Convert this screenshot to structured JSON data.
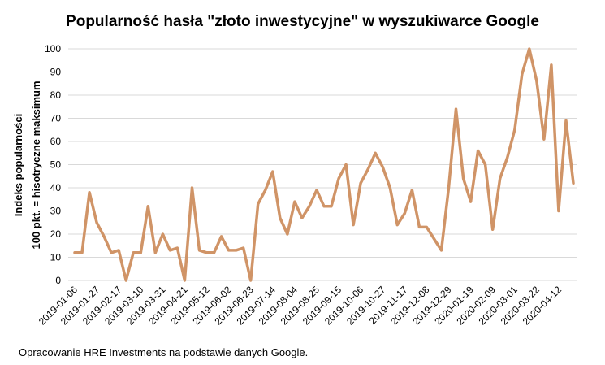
{
  "title": "Popularność hasła \"złoto inwestycyjne\" w wyszukiwarce Google",
  "source": "Opracowanie HRE Investments na podstawie danych Google.",
  "colors": {
    "line": "#d09467",
    "grid": "#d9d9d9"
  },
  "chart_data": {
    "type": "line",
    "ylabel_lines": [
      "Indeks popularności",
      "100 pkt. = hisotryczne maksimum"
    ],
    "ylim": [
      0,
      100
    ],
    "yticks": [
      0,
      10,
      20,
      30,
      40,
      50,
      60,
      70,
      80,
      90,
      100
    ],
    "grid": true,
    "xtick_labels": [
      "2019-01-06",
      "2019-01-27",
      "2019-02-17",
      "2019-03-10",
      "2019-03-31",
      "2019-04-21",
      "2019-05-12",
      "2019-06-02",
      "2019-06-23",
      "2019-07-14",
      "2019-08-04",
      "2019-08-25",
      "2019-09-15",
      "2019-10-06",
      "2019-10-27",
      "2019-11-17",
      "2019-12-08",
      "2019-12-29",
      "2020-01-19",
      "2020-02-09",
      "2020-03-01",
      "2020-03-22",
      "2020-04-12"
    ],
    "series": [
      {
        "values": [
          12,
          12,
          38,
          25,
          19,
          12,
          13,
          0,
          12,
          12,
          32,
          12,
          20,
          13,
          14,
          0,
          40,
          13,
          12,
          12,
          19,
          13,
          13,
          14,
          0,
          33,
          39,
          47,
          27,
          20,
          34,
          27,
          32,
          39,
          32,
          32,
          44,
          50,
          24,
          42,
          48,
          55,
          49,
          40,
          24,
          29,
          39,
          23,
          23,
          18,
          13,
          40,
          74,
          44,
          34,
          56,
          50,
          22,
          44,
          53,
          65,
          89,
          100,
          86,
          61,
          93,
          30,
          69,
          42
        ]
      }
    ]
  }
}
